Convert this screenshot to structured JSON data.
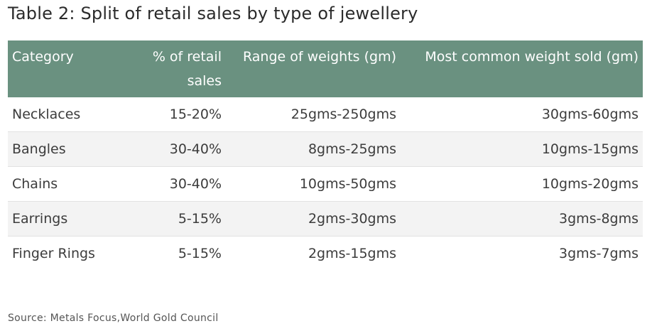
{
  "title": "Table 2: Split of retail sales by type of jewellery",
  "table": {
    "headers": [
      "Category",
      "% of retail sales",
      "Range of weights (gm)",
      "Most common weight sold (gm)"
    ],
    "rows": [
      [
        "Necklaces",
        "15-20%",
        "25gms-250gms",
        "30gms-60gms"
      ],
      [
        "Bangles",
        "30-40%",
        "8gms-25gms",
        "10gms-15gms"
      ],
      [
        "Chains",
        "30-40%",
        "10gms-50gms",
        "10gms-20gms"
      ],
      [
        "Earrings",
        "5-15%",
        "2gms-30gms",
        "3gms-8gms"
      ],
      [
        "Finger Rings",
        "5-15%",
        "2gms-15gms",
        "3gms-7gms"
      ]
    ]
  },
  "colors": {
    "header_bg": "#6a9180",
    "alt_row_bg": "#f3f3f3"
  },
  "source": "Source: Metals Focus,World Gold Council"
}
